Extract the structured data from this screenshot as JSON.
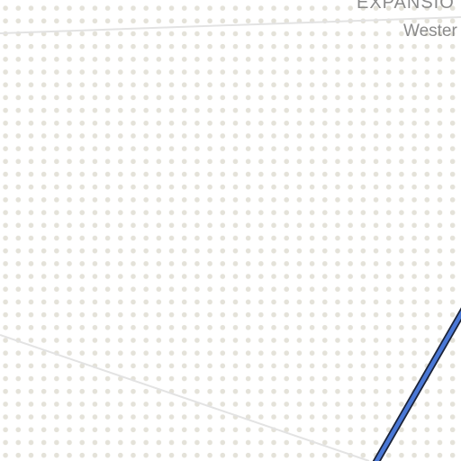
{
  "map": {
    "labels": {
      "upper": "EXPANSIO",
      "lower": "Wester"
    },
    "colors": {
      "background": "#ffffff",
      "dots": "#e4e2d9",
      "road": "#e3e3e3",
      "route": "#4a78d6",
      "route_outline": "#1a2238",
      "label": "#8a8a8a"
    }
  }
}
